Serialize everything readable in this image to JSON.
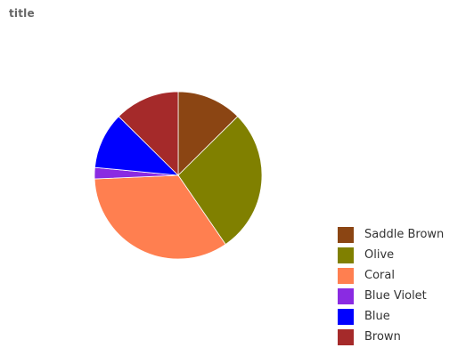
{
  "chart_data": {
    "type": "pie",
    "title": "title",
    "categories": [
      "Saddle Brown",
      "Olive",
      "Coral",
      "Blue Violet",
      "Blue",
      "Brown"
    ],
    "values": [
      11.5,
      25.5,
      31,
      2,
      10,
      11.5
    ],
    "colors": [
      "#8b4513",
      "#808000",
      "#ff7f50",
      "#8a2be2",
      "#0000ff",
      "#a52a2a"
    ],
    "legend_position": "right",
    "start_angle_deg": 0,
    "direction": "clockwise"
  }
}
